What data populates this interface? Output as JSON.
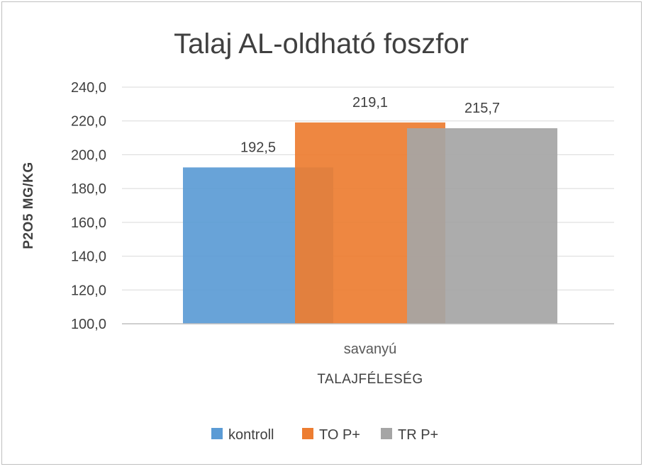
{
  "chart_data": {
    "type": "bar",
    "title": "Talaj AL-oldható foszfor",
    "ylabel": "P2O5 MG/KG",
    "xlabel": "TALAJFÉLESÉG",
    "categories": [
      "savanyú"
    ],
    "ylim": [
      100,
      240
    ],
    "ytick_step": 20,
    "ytick_labels": [
      "100,0",
      "120,0",
      "140,0",
      "160,0",
      "180,0",
      "200,0",
      "220,0",
      "240,0"
    ],
    "grid": true,
    "legend_position": "bottom",
    "series": [
      {
        "name": "kontroll",
        "values": [
          192.5
        ],
        "label": "192,5",
        "color": "#5B9BD5"
      },
      {
        "name": "TO P+",
        "values": [
          219.1
        ],
        "label": "219,1",
        "color": "#ED7D31"
      },
      {
        "name": "TR P+",
        "values": [
          215.7
        ],
        "label": "215,7",
        "color": "#A5A5A5"
      }
    ]
  }
}
